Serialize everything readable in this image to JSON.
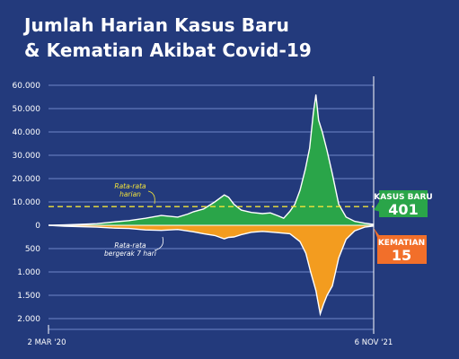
{
  "title_line1": "Jumlah Harian Kasus Baru",
  "title_line2": "& Kematian Akibat Covid-19",
  "chart_data": {
    "type": "area",
    "x_range": [
      "2020-03-02",
      "2021-11-06"
    ],
    "x_tick_labels": [
      "2 MAR '20",
      "6 NOV '21"
    ],
    "cases_axis": {
      "ticks": [
        "60.000",
        "50.000",
        "40.000",
        "30.000",
        "20.000",
        "10.000",
        "0"
      ],
      "range": [
        0,
        60000
      ]
    },
    "deaths_axis": {
      "ticks": [
        "500",
        "1.000",
        "1.500",
        "2.000"
      ],
      "range": [
        0,
        2000
      ]
    },
    "daily_average_line": 8000,
    "annotations": {
      "average": [
        "Rata-rata",
        "harian"
      ],
      "rolling": [
        "Rata-rata",
        "bergerak 7 hari"
      ]
    },
    "series": [
      {
        "name": "KASUS BARU",
        "color": "#2aa549",
        "latest_value": "401",
        "points": [
          [
            "2020-03-02",
            0
          ],
          [
            "2020-04-01",
            150
          ],
          [
            "2020-05-01",
            400
          ],
          [
            "2020-06-01",
            700
          ],
          [
            "2020-07-01",
            1400
          ],
          [
            "2020-08-01",
            2000
          ],
          [
            "2020-09-01",
            3000
          ],
          [
            "2020-10-01",
            4200
          ],
          [
            "2020-11-01",
            3500
          ],
          [
            "2020-11-20",
            4800
          ],
          [
            "2020-12-01",
            5800
          ],
          [
            "2020-12-20",
            7000
          ],
          [
            "2021-01-10",
            10000
          ],
          [
            "2021-01-28",
            13000
          ],
          [
            "2021-02-05",
            12000
          ],
          [
            "2021-02-15",
            9000
          ],
          [
            "2021-03-01",
            6500
          ],
          [
            "2021-03-20",
            5500
          ],
          [
            "2021-04-10",
            5000
          ],
          [
            "2021-04-25",
            5300
          ],
          [
            "2021-05-10",
            4000
          ],
          [
            "2021-05-20",
            3000
          ],
          [
            "2021-06-01",
            6000
          ],
          [
            "2021-06-10",
            9000
          ],
          [
            "2021-06-20",
            15000
          ],
          [
            "2021-06-30",
            24000
          ],
          [
            "2021-07-08",
            33000
          ],
          [
            "2021-07-15",
            48000
          ],
          [
            "2021-07-20",
            56000
          ],
          [
            "2021-07-25",
            45000
          ],
          [
            "2021-08-01",
            40000
          ],
          [
            "2021-08-10",
            32000
          ],
          [
            "2021-08-20",
            22000
          ],
          [
            "2021-09-01",
            9000
          ],
          [
            "2021-09-15",
            3500
          ],
          [
            "2021-10-01",
            1700
          ],
          [
            "2021-10-20",
            900
          ],
          [
            "2021-11-06",
            401
          ]
        ]
      },
      {
        "name": "KEMATIAN",
        "color": "#f39c1f",
        "latest_value": "15",
        "points": [
          [
            "2020-03-02",
            0
          ],
          [
            "2020-04-01",
            20
          ],
          [
            "2020-05-01",
            30
          ],
          [
            "2020-06-01",
            40
          ],
          [
            "2020-07-01",
            60
          ],
          [
            "2020-08-01",
            70
          ],
          [
            "2020-09-01",
            100
          ],
          [
            "2020-10-01",
            110
          ],
          [
            "2020-11-01",
            90
          ],
          [
            "2020-12-01",
            140
          ],
          [
            "2020-12-20",
            180
          ],
          [
            "2021-01-10",
            220
          ],
          [
            "2021-01-28",
            290
          ],
          [
            "2021-02-05",
            260
          ],
          [
            "2021-02-15",
            250
          ],
          [
            "2021-03-01",
            200
          ],
          [
            "2021-03-20",
            150
          ],
          [
            "2021-04-10",
            130
          ],
          [
            "2021-05-01",
            150
          ],
          [
            "2021-06-01",
            180
          ],
          [
            "2021-06-20",
            350
          ],
          [
            "2021-07-01",
            600
          ],
          [
            "2021-07-10",
            1000
          ],
          [
            "2021-07-20",
            1400
          ],
          [
            "2021-07-28",
            1900
          ],
          [
            "2021-08-03",
            1700
          ],
          [
            "2021-08-10",
            1500
          ],
          [
            "2021-08-20",
            1300
          ],
          [
            "2021-09-01",
            700
          ],
          [
            "2021-09-15",
            300
          ],
          [
            "2021-10-01",
            120
          ],
          [
            "2021-10-20",
            40
          ],
          [
            "2021-11-06",
            15
          ]
        ]
      }
    ],
    "grid": true
  }
}
